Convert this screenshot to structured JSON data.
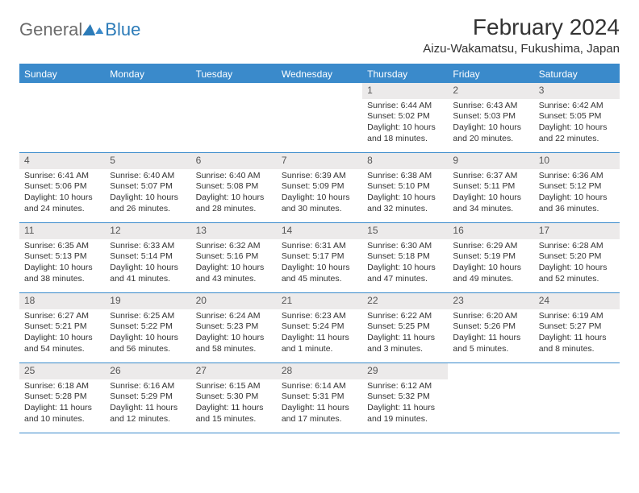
{
  "logo": {
    "part1": "General",
    "part2": "Blue"
  },
  "title": "February 2024",
  "location": "Aizu-Wakamatsu, Fukushima, Japan",
  "colors": {
    "header_bg": "#3a8acb",
    "daynum_bg": "#eceaea",
    "rule": "#3a8acb",
    "text": "#333333",
    "logo_gray": "#6b6b6b",
    "logo_blue": "#2c7bb8"
  },
  "weekdays": [
    "Sunday",
    "Monday",
    "Tuesday",
    "Wednesday",
    "Thursday",
    "Friday",
    "Saturday"
  ],
  "weeks": [
    [
      {
        "n": "",
        "empty": true
      },
      {
        "n": "",
        "empty": true
      },
      {
        "n": "",
        "empty": true
      },
      {
        "n": "",
        "empty": true
      },
      {
        "n": "1",
        "sr": "Sunrise: 6:44 AM",
        "ss": "Sunset: 5:02 PM",
        "dl1": "Daylight: 10 hours",
        "dl2": "and 18 minutes."
      },
      {
        "n": "2",
        "sr": "Sunrise: 6:43 AM",
        "ss": "Sunset: 5:03 PM",
        "dl1": "Daylight: 10 hours",
        "dl2": "and 20 minutes."
      },
      {
        "n": "3",
        "sr": "Sunrise: 6:42 AM",
        "ss": "Sunset: 5:05 PM",
        "dl1": "Daylight: 10 hours",
        "dl2": "and 22 minutes."
      }
    ],
    [
      {
        "n": "4",
        "sr": "Sunrise: 6:41 AM",
        "ss": "Sunset: 5:06 PM",
        "dl1": "Daylight: 10 hours",
        "dl2": "and 24 minutes."
      },
      {
        "n": "5",
        "sr": "Sunrise: 6:40 AM",
        "ss": "Sunset: 5:07 PM",
        "dl1": "Daylight: 10 hours",
        "dl2": "and 26 minutes."
      },
      {
        "n": "6",
        "sr": "Sunrise: 6:40 AM",
        "ss": "Sunset: 5:08 PM",
        "dl1": "Daylight: 10 hours",
        "dl2": "and 28 minutes."
      },
      {
        "n": "7",
        "sr": "Sunrise: 6:39 AM",
        "ss": "Sunset: 5:09 PM",
        "dl1": "Daylight: 10 hours",
        "dl2": "and 30 minutes."
      },
      {
        "n": "8",
        "sr": "Sunrise: 6:38 AM",
        "ss": "Sunset: 5:10 PM",
        "dl1": "Daylight: 10 hours",
        "dl2": "and 32 minutes."
      },
      {
        "n": "9",
        "sr": "Sunrise: 6:37 AM",
        "ss": "Sunset: 5:11 PM",
        "dl1": "Daylight: 10 hours",
        "dl2": "and 34 minutes."
      },
      {
        "n": "10",
        "sr": "Sunrise: 6:36 AM",
        "ss": "Sunset: 5:12 PM",
        "dl1": "Daylight: 10 hours",
        "dl2": "and 36 minutes."
      }
    ],
    [
      {
        "n": "11",
        "sr": "Sunrise: 6:35 AM",
        "ss": "Sunset: 5:13 PM",
        "dl1": "Daylight: 10 hours",
        "dl2": "and 38 minutes."
      },
      {
        "n": "12",
        "sr": "Sunrise: 6:33 AM",
        "ss": "Sunset: 5:14 PM",
        "dl1": "Daylight: 10 hours",
        "dl2": "and 41 minutes."
      },
      {
        "n": "13",
        "sr": "Sunrise: 6:32 AM",
        "ss": "Sunset: 5:16 PM",
        "dl1": "Daylight: 10 hours",
        "dl2": "and 43 minutes."
      },
      {
        "n": "14",
        "sr": "Sunrise: 6:31 AM",
        "ss": "Sunset: 5:17 PM",
        "dl1": "Daylight: 10 hours",
        "dl2": "and 45 minutes."
      },
      {
        "n": "15",
        "sr": "Sunrise: 6:30 AM",
        "ss": "Sunset: 5:18 PM",
        "dl1": "Daylight: 10 hours",
        "dl2": "and 47 minutes."
      },
      {
        "n": "16",
        "sr": "Sunrise: 6:29 AM",
        "ss": "Sunset: 5:19 PM",
        "dl1": "Daylight: 10 hours",
        "dl2": "and 49 minutes."
      },
      {
        "n": "17",
        "sr": "Sunrise: 6:28 AM",
        "ss": "Sunset: 5:20 PM",
        "dl1": "Daylight: 10 hours",
        "dl2": "and 52 minutes."
      }
    ],
    [
      {
        "n": "18",
        "sr": "Sunrise: 6:27 AM",
        "ss": "Sunset: 5:21 PM",
        "dl1": "Daylight: 10 hours",
        "dl2": "and 54 minutes."
      },
      {
        "n": "19",
        "sr": "Sunrise: 6:25 AM",
        "ss": "Sunset: 5:22 PM",
        "dl1": "Daylight: 10 hours",
        "dl2": "and 56 minutes."
      },
      {
        "n": "20",
        "sr": "Sunrise: 6:24 AM",
        "ss": "Sunset: 5:23 PM",
        "dl1": "Daylight: 10 hours",
        "dl2": "and 58 minutes."
      },
      {
        "n": "21",
        "sr": "Sunrise: 6:23 AM",
        "ss": "Sunset: 5:24 PM",
        "dl1": "Daylight: 11 hours",
        "dl2": "and 1 minute."
      },
      {
        "n": "22",
        "sr": "Sunrise: 6:22 AM",
        "ss": "Sunset: 5:25 PM",
        "dl1": "Daylight: 11 hours",
        "dl2": "and 3 minutes."
      },
      {
        "n": "23",
        "sr": "Sunrise: 6:20 AM",
        "ss": "Sunset: 5:26 PM",
        "dl1": "Daylight: 11 hours",
        "dl2": "and 5 minutes."
      },
      {
        "n": "24",
        "sr": "Sunrise: 6:19 AM",
        "ss": "Sunset: 5:27 PM",
        "dl1": "Daylight: 11 hours",
        "dl2": "and 8 minutes."
      }
    ],
    [
      {
        "n": "25",
        "sr": "Sunrise: 6:18 AM",
        "ss": "Sunset: 5:28 PM",
        "dl1": "Daylight: 11 hours",
        "dl2": "and 10 minutes."
      },
      {
        "n": "26",
        "sr": "Sunrise: 6:16 AM",
        "ss": "Sunset: 5:29 PM",
        "dl1": "Daylight: 11 hours",
        "dl2": "and 12 minutes."
      },
      {
        "n": "27",
        "sr": "Sunrise: 6:15 AM",
        "ss": "Sunset: 5:30 PM",
        "dl1": "Daylight: 11 hours",
        "dl2": "and 15 minutes."
      },
      {
        "n": "28",
        "sr": "Sunrise: 6:14 AM",
        "ss": "Sunset: 5:31 PM",
        "dl1": "Daylight: 11 hours",
        "dl2": "and 17 minutes."
      },
      {
        "n": "29",
        "sr": "Sunrise: 6:12 AM",
        "ss": "Sunset: 5:32 PM",
        "dl1": "Daylight: 11 hours",
        "dl2": "and 19 minutes."
      },
      {
        "n": "",
        "empty": true
      },
      {
        "n": "",
        "empty": true
      }
    ]
  ]
}
